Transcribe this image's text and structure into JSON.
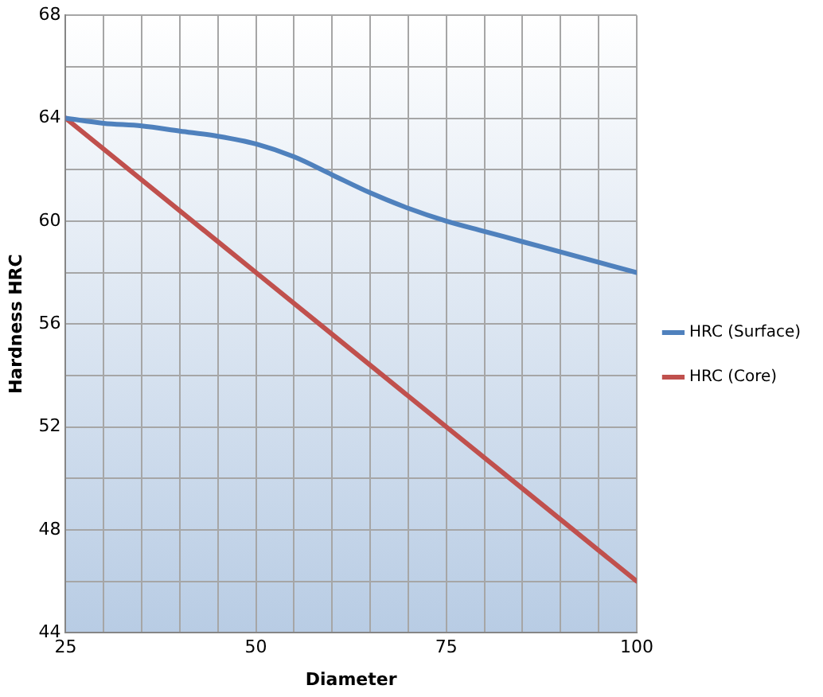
{
  "chart_data": {
    "type": "line",
    "xlabel": "Diameter",
    "ylabel": "Hardness HRC",
    "xlim": [
      25,
      100
    ],
    "xticks": [
      25,
      {
        "value": 30,
        "label": null
      },
      {
        "value": 35,
        "label": null
      },
      {
        "value": 40,
        "label": null
      },
      {
        "value": 45,
        "label": null
      },
      50,
      {
        "value": 55,
        "label": null
      },
      {
        "value": 60,
        "label": null
      },
      {
        "value": 65,
        "label": null
      },
      {
        "value": 70,
        "label": null
      },
      75,
      {
        "value": 80,
        "label": null
      },
      {
        "value": 85,
        "label": null
      },
      {
        "value": 90,
        "label": null
      },
      {
        "value": 95,
        "label": null
      },
      100
    ],
    "ylim": [
      44,
      68
    ],
    "yticks": [
      44,
      {
        "value": 46,
        "label": null
      },
      48,
      {
        "value": 50,
        "label": null
      },
      52,
      {
        "value": 54,
        "label": null
      },
      56,
      {
        "value": 58,
        "label": null
      },
      60,
      {
        "value": 62,
        "label": null
      },
      64,
      {
        "value": 66,
        "label": null
      },
      68
    ],
    "grid": true,
    "legend": "right",
    "marker": "none",
    "line_style": "solid",
    "series": [
      {
        "name": "HRC (Surface)",
        "color": "#4f81bd",
        "x": [
          25,
          30,
          35,
          40,
          45,
          50,
          55,
          60,
          65,
          70,
          75,
          80,
          85,
          90,
          95,
          100
        ],
        "values": [
          64,
          63.8,
          63.7,
          63.5,
          63.3,
          63,
          62.5,
          61.8,
          61.1,
          60.5,
          60,
          59.6,
          59.2,
          58.8,
          58.4,
          58
        ]
      },
      {
        "name": "HRC (Core)",
        "color": "#c0504d",
        "x": [
          25,
          50,
          75,
          100
        ],
        "values": [
          64,
          58,
          52,
          46
        ]
      }
    ]
  }
}
